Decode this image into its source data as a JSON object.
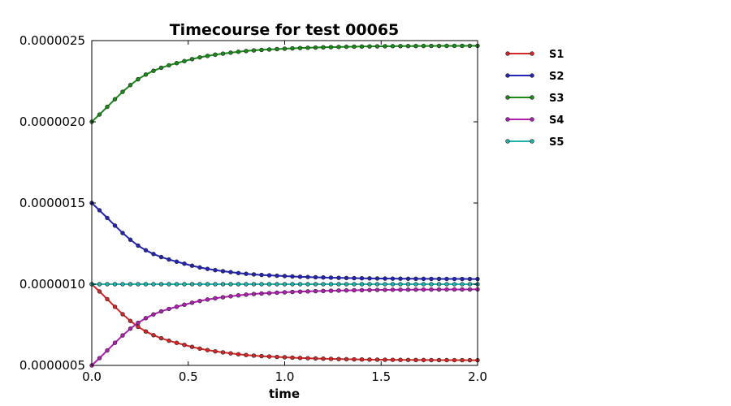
{
  "chart_data": {
    "type": "line",
    "title": "Timecourse for test 00065",
    "xlabel": "time",
    "ylabel": "",
    "xlim": [
      0.0,
      2.0
    ],
    "ylim": [
      5e-07,
      2.5e-06
    ],
    "xticks": [
      "0.0",
      "0.5",
      "1.0",
      "1.5",
      "2.0"
    ],
    "yticks": [
      "0.0000005",
      "0.0000010",
      "0.0000015",
      "0.0000020",
      "0.0000025"
    ],
    "grid": false,
    "legend_position": "outside-right",
    "x": [
      0.0,
      0.25,
      0.5,
      0.75,
      1.0,
      1.25,
      1.5,
      1.75,
      2.0
    ],
    "series": [
      {
        "name": "S1",
        "color": "#d62728",
        "values": [
          1e-06,
          7.3e-07,
          6.2e-07,
          5.7e-07,
          5.5e-07,
          5.4e-07,
          5.35e-07,
          5.33e-07,
          5.32e-07
        ]
      },
      {
        "name": "S2",
        "color": "#2424b8",
        "values": [
          1.5e-06,
          1.23e-06,
          1.12e-06,
          1.07e-06,
          1.05e-06,
          1.04e-06,
          1.035e-06,
          1.033e-06,
          1.032e-06
        ]
      },
      {
        "name": "S3",
        "color": "#1a8a1a",
        "values": [
          2e-06,
          2.27e-06,
          2.38e-06,
          2.43e-06,
          2.45e-06,
          2.46e-06,
          2.465e-06,
          2.467e-06,
          2.468e-06
        ]
      },
      {
        "name": "S4",
        "color": "#b01fb0",
        "values": [
          5e-07,
          7.7e-07,
          8.8e-07,
          9.3e-07,
          9.5e-07,
          9.6e-07,
          9.65e-07,
          9.67e-07,
          9.68e-07
        ]
      },
      {
        "name": "S5",
        "color": "#20b2aa",
        "values": [
          1e-06,
          1e-06,
          1e-06,
          1e-06,
          1e-06,
          1e-06,
          1e-06,
          1e-06,
          1e-06
        ]
      }
    ]
  }
}
